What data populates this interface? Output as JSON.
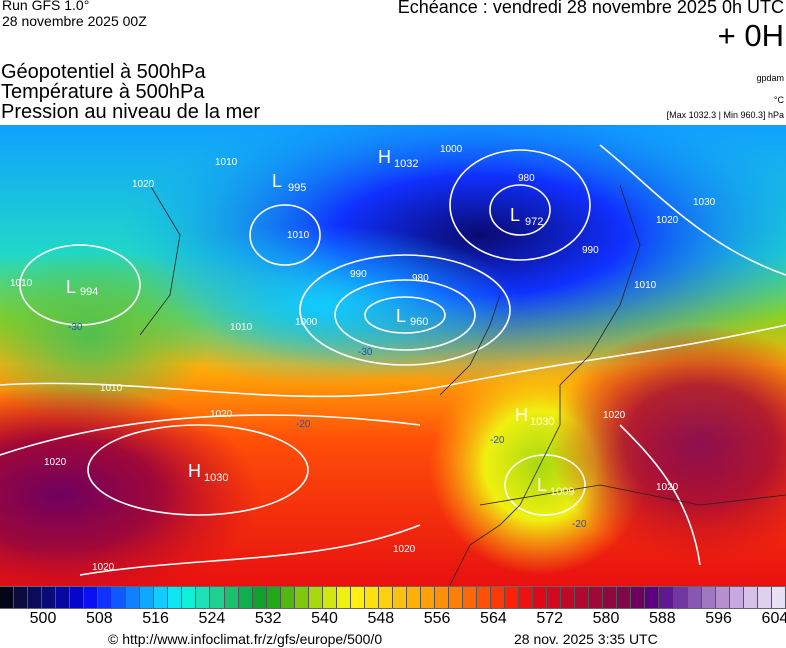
{
  "header": {
    "run": "Run GFS 1.0°",
    "run_date": "28 novembre 2025 00Z",
    "echeance": "Echéance : vendredi 28 novembre 2025 0h UTC",
    "offset": "+ 0H",
    "fields": [
      "Géopotentiel à 500hPa",
      "Température à 500hPa",
      "Pression au niveau de la mer"
    ],
    "units": [
      "gpdam",
      "°C",
      "[Max 1032.3 | Min 960.3] hPa"
    ]
  },
  "map": {
    "centers": [
      {
        "type": "L",
        "value": "995"
      },
      {
        "type": "H",
        "value": "1032"
      },
      {
        "type": "L",
        "value": "972"
      },
      {
        "type": "L",
        "value": "994"
      },
      {
        "type": "L",
        "value": "960"
      },
      {
        "type": "H",
        "value": "1030"
      },
      {
        "type": "H",
        "value": "1030"
      },
      {
        "type": "L",
        "value": "1009"
      }
    ],
    "isobar_labels": [
      "1020",
      "1010",
      "1010",
      "1000",
      "980",
      "990",
      "980",
      "1000",
      "1010",
      "990",
      "1010",
      "1020",
      "1030",
      "1010",
      "1020",
      "1020",
      "1020",
      "1020",
      "1020",
      "1020",
      "1010"
    ],
    "temperature_labels": [
      "-30",
      "-30",
      "-20",
      "-20",
      "-20"
    ]
  },
  "colorbar": {
    "colors": [
      "#05051a",
      "#0a0a3c",
      "#0b0b5a",
      "#0a0a78",
      "#0808a0",
      "#0606c8",
      "#0a10f0",
      "#1030ff",
      "#1058ff",
      "#1080ff",
      "#10a8ff",
      "#10ccff",
      "#10e4f0",
      "#10f0d8",
      "#20e0b8",
      "#20d090",
      "#18c070",
      "#10b050",
      "#10a030",
      "#20a818",
      "#50b810",
      "#80c810",
      "#a8d810",
      "#d0e810",
      "#f0f010",
      "#fff010",
      "#ffe010",
      "#ffd010",
      "#ffc010",
      "#ffb008",
      "#ffa008",
      "#ff9008",
      "#ff8008",
      "#ff6808",
      "#ff5008",
      "#ff3808",
      "#ff2008",
      "#f01010",
      "#e00818",
      "#d00820",
      "#c00828",
      "#b00830",
      "#a00838",
      "#900840",
      "#800848",
      "#700060",
      "#5c0080",
      "#601890",
      "#7038a0",
      "#8858b0",
      "#a078c0",
      "#b890d0",
      "#c8a8e0",
      "#d8c0e8",
      "#e0d0f0",
      "#e8e0f4"
    ],
    "ticks": [
      "500",
      "508",
      "516",
      "524",
      "532",
      "540",
      "548",
      "556",
      "564",
      "572",
      "580",
      "588",
      "596",
      "604"
    ]
  },
  "footer": {
    "url": "© http://www.infoclimat.fr/z/gfs/europe/500/0",
    "date": "28 nov. 2025  3:35 UTC"
  }
}
